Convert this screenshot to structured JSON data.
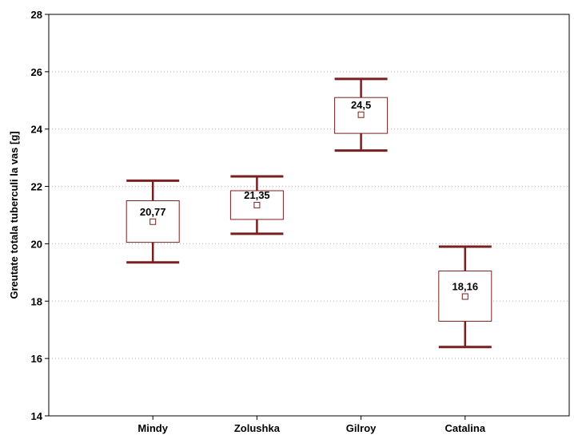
{
  "chart_data": {
    "type": "box",
    "title": "",
    "xlabel": "",
    "ylabel": "Greutate totala tuberculi la vas [g]",
    "ylim": [
      14,
      28
    ],
    "yticks": [
      14,
      16,
      18,
      20,
      22,
      24,
      26,
      28
    ],
    "grid": "horizontal dotted",
    "categories": [
      "Mindy",
      "Zolushka",
      "Gilroy",
      "Catalina"
    ],
    "mean_labels": [
      "20,77",
      "21,35",
      "24,5",
      "18,16"
    ],
    "boxes": [
      {
        "category": "Mindy",
        "mean": 20.77,
        "box_low": 20.05,
        "box_high": 21.5,
        "whisker_low": 19.35,
        "whisker_high": 22.2
      },
      {
        "category": "Zolushka",
        "mean": 21.35,
        "box_low": 20.85,
        "box_high": 21.85,
        "whisker_low": 20.35,
        "whisker_high": 22.35
      },
      {
        "category": "Gilroy",
        "mean": 24.5,
        "box_low": 23.85,
        "box_high": 25.1,
        "whisker_low": 23.25,
        "whisker_high": 25.75
      },
      {
        "category": "Catalina",
        "mean": 18.16,
        "box_low": 17.3,
        "box_high": 19.05,
        "whisker_low": 16.4,
        "whisker_high": 19.9
      }
    ],
    "colors": {
      "box": "#7a1f1f",
      "whisker": "#7a1f1f",
      "grid": "#b8b8b8",
      "axis": "#000000"
    }
  }
}
